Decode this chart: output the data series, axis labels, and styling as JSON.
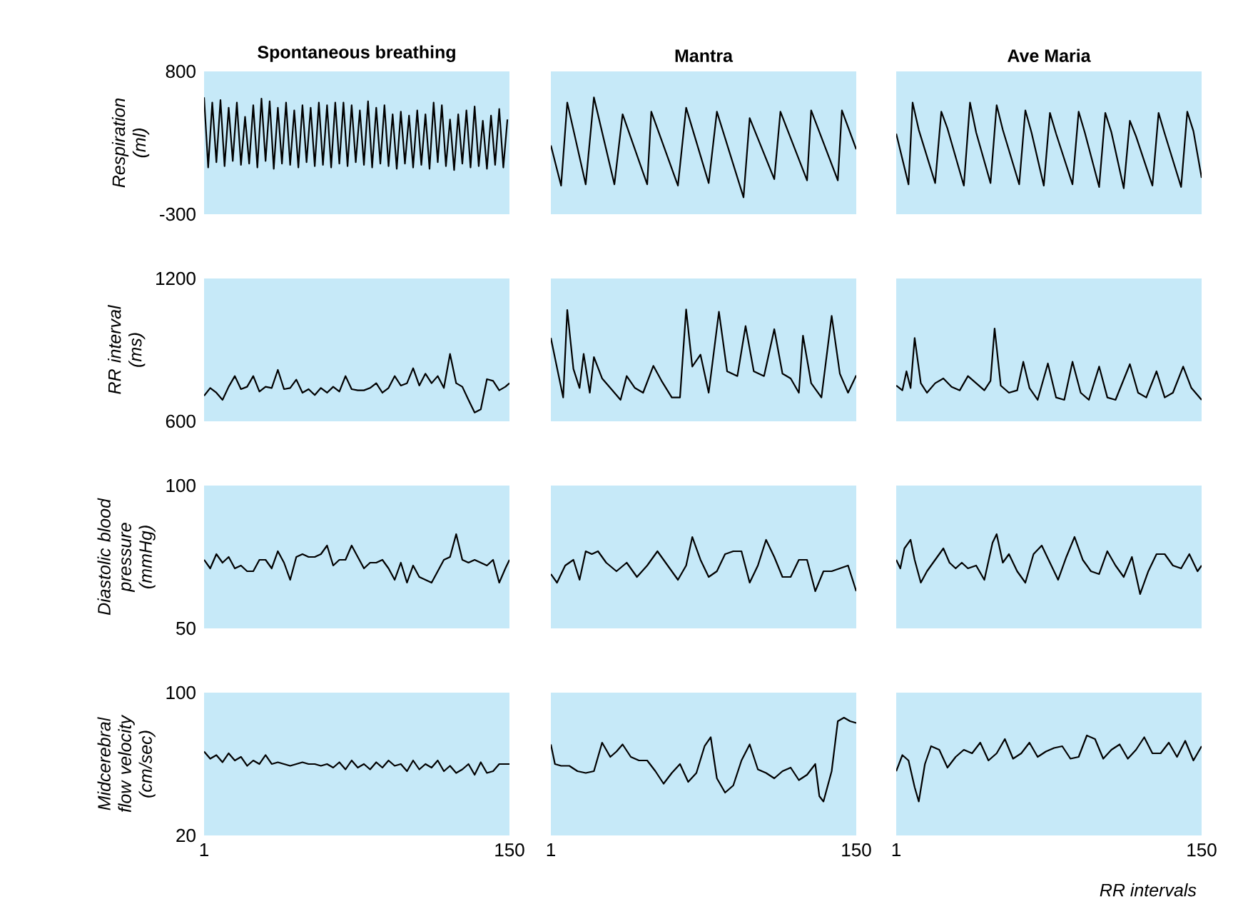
{
  "chart_data": [
    {
      "type": "line",
      "title": "Spontaneous breathing",
      "ylabel": "Respiration (ml)",
      "color": "#000000",
      "xlim": [
        1,
        150
      ],
      "ylim": [
        -300,
        800
      ],
      "yticks": [
        -300,
        800
      ],
      "tick_labels": "y",
      "x": [
        1,
        3,
        5,
        7,
        9,
        11,
        13,
        15,
        17,
        19,
        21,
        23,
        25,
        27,
        29,
        31,
        33,
        35,
        37,
        39,
        41,
        43,
        45,
        47,
        49,
        51,
        53,
        55,
        57,
        59,
        61,
        63,
        65,
        67,
        69,
        71,
        73,
        75,
        77,
        79,
        81,
        83,
        85,
        87,
        89,
        91,
        93,
        95,
        97,
        99,
        101,
        103,
        105,
        107,
        109,
        111,
        113,
        115,
        117,
        119,
        121,
        123,
        125,
        127,
        129,
        131,
        133,
        135,
        137,
        139,
        141,
        143,
        145,
        147,
        149
      ],
      "values": [
        600,
        60,
        560,
        100,
        580,
        70,
        520,
        110,
        560,
        80,
        450,
        90,
        540,
        60,
        590,
        110,
        570,
        50,
        520,
        90,
        560,
        80,
        500,
        60,
        540,
        100,
        520,
        70,
        560,
        80,
        540,
        60,
        560,
        90,
        560,
        70,
        540,
        100,
        500,
        80,
        570,
        60,
        520,
        90,
        540,
        70,
        470,
        50,
        490,
        90,
        460,
        60,
        500,
        80,
        470,
        50,
        560,
        100,
        540,
        70,
        430,
        40,
        470,
        90,
        500,
        60,
        530,
        70,
        420,
        50,
        460,
        80,
        510,
        60,
        430
      ]
    },
    {
      "type": "line",
      "title": "Mantra",
      "color": "#000000",
      "xlim": [
        1,
        150
      ],
      "ylim": [
        -300,
        800
      ],
      "tick_labels": false,
      "x": [
        1,
        6,
        9,
        18,
        22,
        32,
        36,
        48,
        50,
        63,
        67,
        78,
        82,
        95,
        98,
        110,
        113,
        126,
        128,
        141,
        143,
        150
      ],
      "values": [
        230,
        -80,
        560,
        -70,
        600,
        -70,
        470,
        -70,
        490,
        -80,
        520,
        -60,
        490,
        -170,
        440,
        -30,
        490,
        -40,
        500,
        -40,
        500,
        200
      ]
    },
    {
      "type": "line",
      "title": "Ave Maria",
      "color": "#000000",
      "xlim": [
        1,
        150
      ],
      "ylim": [
        -300,
        800
      ],
      "tick_labels": false,
      "x": [
        1,
        7,
        9,
        12,
        20,
        23,
        26,
        34,
        37,
        40,
        47,
        50,
        53,
        61,
        64,
        67,
        73,
        76,
        79,
        87,
        90,
        93,
        100,
        103,
        106,
        112,
        115,
        118,
        126,
        129,
        132,
        140,
        143,
        146,
        150
      ],
      "values": [
        320,
        -70,
        560,
        350,
        -60,
        490,
        360,
        -80,
        560,
        330,
        -60,
        540,
        350,
        -70,
        500,
        330,
        -80,
        480,
        320,
        -70,
        490,
        330,
        -90,
        480,
        330,
        -100,
        420,
        300,
        -80,
        480,
        320,
        -90,
        490,
        340,
        -20
      ]
    },
    {
      "type": "line",
      "ylabel": "RR interval (ms)",
      "color": "#000000",
      "xlim": [
        1,
        150
      ],
      "ylim": [
        600,
        1200
      ],
      "yticks": [
        600,
        1200
      ],
      "tick_labels": "y",
      "x": [
        1,
        4,
        7,
        10,
        13,
        16,
        19,
        22,
        25,
        28,
        31,
        34,
        37,
        40,
        43,
        46,
        49,
        52,
        55,
        58,
        61,
        64,
        67,
        70,
        73,
        76,
        79,
        82,
        85,
        88,
        91,
        94,
        97,
        100,
        103,
        106,
        109,
        112,
        115,
        118,
        121,
        124,
        127,
        130,
        133,
        136,
        139,
        142,
        145,
        148,
        150
      ],
      "values": [
        707,
        740,
        720,
        690,
        745,
        790,
        735,
        745,
        790,
        725,
        745,
        740,
        816,
        735,
        740,
        775,
        720,
        735,
        710,
        740,
        720,
        745,
        725,
        790,
        735,
        730,
        730,
        740,
        760,
        720,
        740,
        790,
        750,
        760,
        823,
        750,
        800,
        760,
        790,
        740,
        883,
        760,
        745,
        690,
        637,
        650,
        777,
        770,
        730,
        745,
        760
      ]
    },
    {
      "type": "line",
      "color": "#000000",
      "xlim": [
        1,
        150
      ],
      "ylim": [
        600,
        1200
      ],
      "tick_labels": false,
      "x": [
        1,
        7,
        9,
        12,
        15,
        17,
        20,
        22,
        26,
        30,
        35,
        38,
        42,
        46,
        51,
        55,
        60,
        64,
        67,
        70,
        74,
        78,
        83,
        87,
        92,
        96,
        100,
        105,
        110,
        114,
        118,
        122,
        124,
        128,
        133,
        138,
        142,
        146,
        150
      ],
      "values": [
        950,
        700,
        1068,
        820,
        740,
        883,
        720,
        870,
        780,
        740,
        690,
        790,
        740,
        720,
        833,
        770,
        700,
        700,
        1070,
        830,
        880,
        720,
        1060,
        810,
        790,
        1000,
        810,
        790,
        987,
        800,
        780,
        720,
        960,
        760,
        700,
        1043,
        800,
        720,
        793
      ]
    },
    {
      "type": "line",
      "color": "#000000",
      "xlim": [
        1,
        150
      ],
      "ylim": [
        600,
        1200
      ],
      "tick_labels": false,
      "x": [
        1,
        4,
        6,
        8,
        10,
        13,
        16,
        20,
        24,
        28,
        32,
        36,
        40,
        44,
        47,
        49,
        52,
        56,
        60,
        63,
        66,
        70,
        75,
        79,
        83,
        87,
        91,
        95,
        100,
        104,
        108,
        115,
        119,
        123,
        128,
        132,
        136,
        141,
        145,
        150
      ],
      "values": [
        750,
        730,
        810,
        740,
        950,
        760,
        720,
        760,
        780,
        745,
        730,
        790,
        760,
        730,
        770,
        990,
        750,
        720,
        730,
        850,
        740,
        690,
        843,
        700,
        690,
        850,
        720,
        690,
        830,
        700,
        690,
        840,
        720,
        700,
        810,
        700,
        720,
        830,
        740,
        690
      ]
    },
    {
      "type": "line",
      "ylabel": "Diastolic blood pressure (mmHg)",
      "color": "#000000",
      "xlim": [
        1,
        150
      ],
      "ylim": [
        50,
        100
      ],
      "yticks": [
        50,
        100
      ],
      "tick_labels": "y",
      "x": [
        1,
        4,
        7,
        10,
        13,
        16,
        19,
        22,
        25,
        28,
        31,
        34,
        37,
        40,
        43,
        46,
        49,
        52,
        55,
        58,
        61,
        64,
        67,
        70,
        73,
        76,
        79,
        82,
        85,
        88,
        91,
        94,
        97,
        100,
        103,
        106,
        109,
        112,
        115,
        118,
        121,
        124,
        127,
        130,
        133,
        136,
        139,
        142,
        145,
        148,
        150
      ],
      "values": [
        74,
        71,
        76,
        73,
        75,
        71,
        72,
        70,
        70,
        74,
        74,
        71,
        77,
        73,
        67,
        75,
        76,
        75,
        75,
        76,
        79,
        72,
        74,
        74,
        79,
        75,
        71,
        73,
        73,
        74,
        71,
        67,
        73,
        66,
        72,
        68,
        67,
        66,
        70,
        74,
        75,
        83,
        74,
        73,
        74,
        73,
        72,
        74,
        66,
        71,
        74
      ]
    },
    {
      "type": "line",
      "color": "#000000",
      "xlim": [
        1,
        150
      ],
      "ylim": [
        50,
        100
      ],
      "tick_labels": false,
      "x": [
        1,
        4,
        8,
        12,
        15,
        18,
        21,
        24,
        28,
        33,
        38,
        43,
        48,
        53,
        58,
        63,
        67,
        70,
        74,
        78,
        82,
        86,
        90,
        94,
        98,
        102,
        106,
        110,
        114,
        118,
        122,
        126,
        130,
        134,
        138,
        142,
        146,
        150
      ],
      "values": [
        69,
        66,
        72,
        74,
        67,
        77,
        76,
        77,
        73,
        70,
        73,
        68,
        72,
        77,
        72,
        67,
        72,
        82,
        74,
        68,
        70,
        76,
        77,
        77,
        66,
        72,
        81,
        75,
        68,
        68,
        74,
        74,
        63,
        70,
        70,
        71,
        72,
        63
      ]
    },
    {
      "type": "line",
      "color": "#000000",
      "xlim": [
        1,
        150
      ],
      "ylim": [
        50,
        100
      ],
      "tick_labels": false,
      "x": [
        1,
        3,
        5,
        8,
        10,
        13,
        16,
        20,
        24,
        27,
        30,
        33,
        36,
        40,
        44,
        48,
        50,
        53,
        56,
        60,
        64,
        68,
        72,
        76,
        80,
        84,
        88,
        92,
        96,
        100,
        104,
        108,
        112,
        116,
        120,
        124,
        128,
        132,
        136,
        140,
        144,
        148,
        150
      ],
      "values": [
        74,
        71,
        78,
        81,
        74,
        66,
        70,
        74,
        78,
        73,
        71,
        73,
        71,
        72,
        67,
        80,
        83,
        73,
        76,
        70,
        66,
        76,
        79,
        73,
        67,
        75,
        82,
        74,
        70,
        69,
        77,
        72,
        68,
        75,
        62,
        70,
        76,
        76,
        72,
        71,
        76,
        70,
        72
      ]
    },
    {
      "type": "line",
      "ylabel": "Midcerebral flow velocity (cm/sec)",
      "color": "#000000",
      "xlim": [
        1,
        150
      ],
      "ylim": [
        20,
        100
      ],
      "xticks": [
        1,
        150
      ],
      "yticks": [
        20,
        100
      ],
      "x": [
        1,
        4,
        7,
        10,
        13,
        16,
        19,
        22,
        25,
        28,
        31,
        34,
        37,
        40,
        43,
        46,
        49,
        52,
        55,
        58,
        61,
        64,
        67,
        70,
        73,
        76,
        79,
        82,
        85,
        88,
        91,
        94,
        97,
        100,
        103,
        106,
        109,
        112,
        115,
        118,
        121,
        124,
        127,
        130,
        133,
        136,
        139,
        142,
        145,
        148,
        150
      ],
      "values": [
        67,
        63,
        65,
        61,
        66,
        62,
        64,
        59,
        62,
        60,
        65,
        60,
        61,
        60,
        59,
        60,
        61,
        60,
        60,
        59,
        60,
        58,
        61,
        57,
        62,
        58,
        60,
        57,
        61,
        58,
        62,
        59,
        60,
        56,
        62,
        57,
        60,
        58,
        62,
        56,
        59,
        55,
        57,
        60,
        54,
        61,
        55,
        56,
        60,
        60,
        60
      ]
    },
    {
      "type": "line",
      "color": "#000000",
      "xlim": [
        1,
        150
      ],
      "ylim": [
        20,
        100
      ],
      "xticks": [
        1,
        150
      ],
      "tick_labels": "x",
      "x": [
        1,
        3,
        6,
        10,
        14,
        18,
        22,
        26,
        30,
        33,
        36,
        40,
        44,
        48,
        52,
        56,
        60,
        64,
        68,
        72,
        76,
        79,
        82,
        86,
        90,
        94,
        98,
        102,
        106,
        110,
        114,
        118,
        122,
        126,
        130,
        132,
        134,
        138,
        141,
        144,
        147,
        150
      ],
      "values": [
        71,
        60,
        59,
        59,
        56,
        55,
        56,
        72,
        64,
        67,
        71,
        64,
        62,
        62,
        56,
        49,
        55,
        60,
        50,
        55,
        70,
        75,
        52,
        44,
        48,
        62,
        71,
        57,
        55,
        52,
        56,
        58,
        51,
        54,
        60,
        42,
        39,
        56,
        84,
        86,
        84,
        83
      ]
    },
    {
      "type": "line",
      "xlabel": "RR intervals",
      "color": "#000000",
      "xlim": [
        1,
        150
      ],
      "ylim": [
        20,
        100
      ],
      "xticks": [
        1,
        150
      ],
      "tick_labels": "x",
      "x": [
        1,
        4,
        7,
        10,
        12,
        15,
        18,
        22,
        26,
        30,
        34,
        38,
        42,
        46,
        50,
        54,
        58,
        62,
        66,
        70,
        74,
        78,
        82,
        86,
        90,
        94,
        98,
        102,
        106,
        110,
        114,
        118,
        122,
        126,
        130,
        134,
        138,
        142,
        146,
        150
      ],
      "values": [
        56,
        65,
        62,
        47,
        39,
        60,
        70,
        68,
        58,
        64,
        68,
        66,
        72,
        62,
        66,
        74,
        63,
        66,
        72,
        64,
        67,
        69,
        70,
        63,
        64,
        76,
        74,
        63,
        68,
        71,
        63,
        68,
        75,
        66,
        66,
        72,
        64,
        73,
        62,
        70
      ]
    }
  ]
}
